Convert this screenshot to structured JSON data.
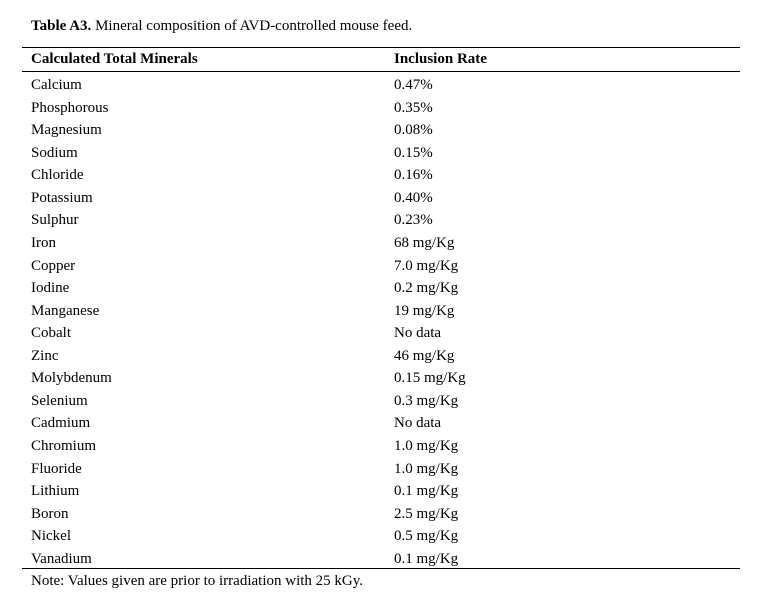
{
  "table": {
    "label": "Table A3.",
    "caption": " Mineral composition of AVD-controlled mouse feed.",
    "headers": [
      "Calculated Total Minerals",
      "Inclusion Rate"
    ],
    "rows": [
      [
        "Calcium",
        "0.47%"
      ],
      [
        "Phosphorous",
        "0.35%"
      ],
      [
        "Magnesium",
        "0.08%"
      ],
      [
        "Sodium",
        "0.15%"
      ],
      [
        "Chloride",
        "0.16%"
      ],
      [
        "Potassium",
        "0.40%"
      ],
      [
        "Sulphur",
        "0.23%"
      ],
      [
        "Iron",
        "68 mg/Kg"
      ],
      [
        "Copper",
        "7.0 mg/Kg"
      ],
      [
        "Iodine",
        "0.2 mg/Kg"
      ],
      [
        "Manganese",
        "19 mg/Kg"
      ],
      [
        "Cobalt",
        "No data"
      ],
      [
        "Zinc",
        "46 mg/Kg"
      ],
      [
        "Molybdenum",
        "0.15 mg/Kg"
      ],
      [
        "Selenium",
        "0.3 mg/Kg"
      ],
      [
        "Cadmium",
        "No data"
      ],
      [
        "Chromium",
        "1.0 mg/Kg"
      ],
      [
        "Fluoride",
        "1.0 mg/Kg"
      ],
      [
        "Lithium",
        "0.1 mg/Kg"
      ],
      [
        "Boron",
        "2.5 mg/Kg"
      ],
      [
        "Nickel",
        "0.5 mg/Kg"
      ],
      [
        "Vanadium",
        "0.1 mg/Kg"
      ]
    ],
    "note": "Note: Values given are prior to irradiation with 25 kGy."
  }
}
